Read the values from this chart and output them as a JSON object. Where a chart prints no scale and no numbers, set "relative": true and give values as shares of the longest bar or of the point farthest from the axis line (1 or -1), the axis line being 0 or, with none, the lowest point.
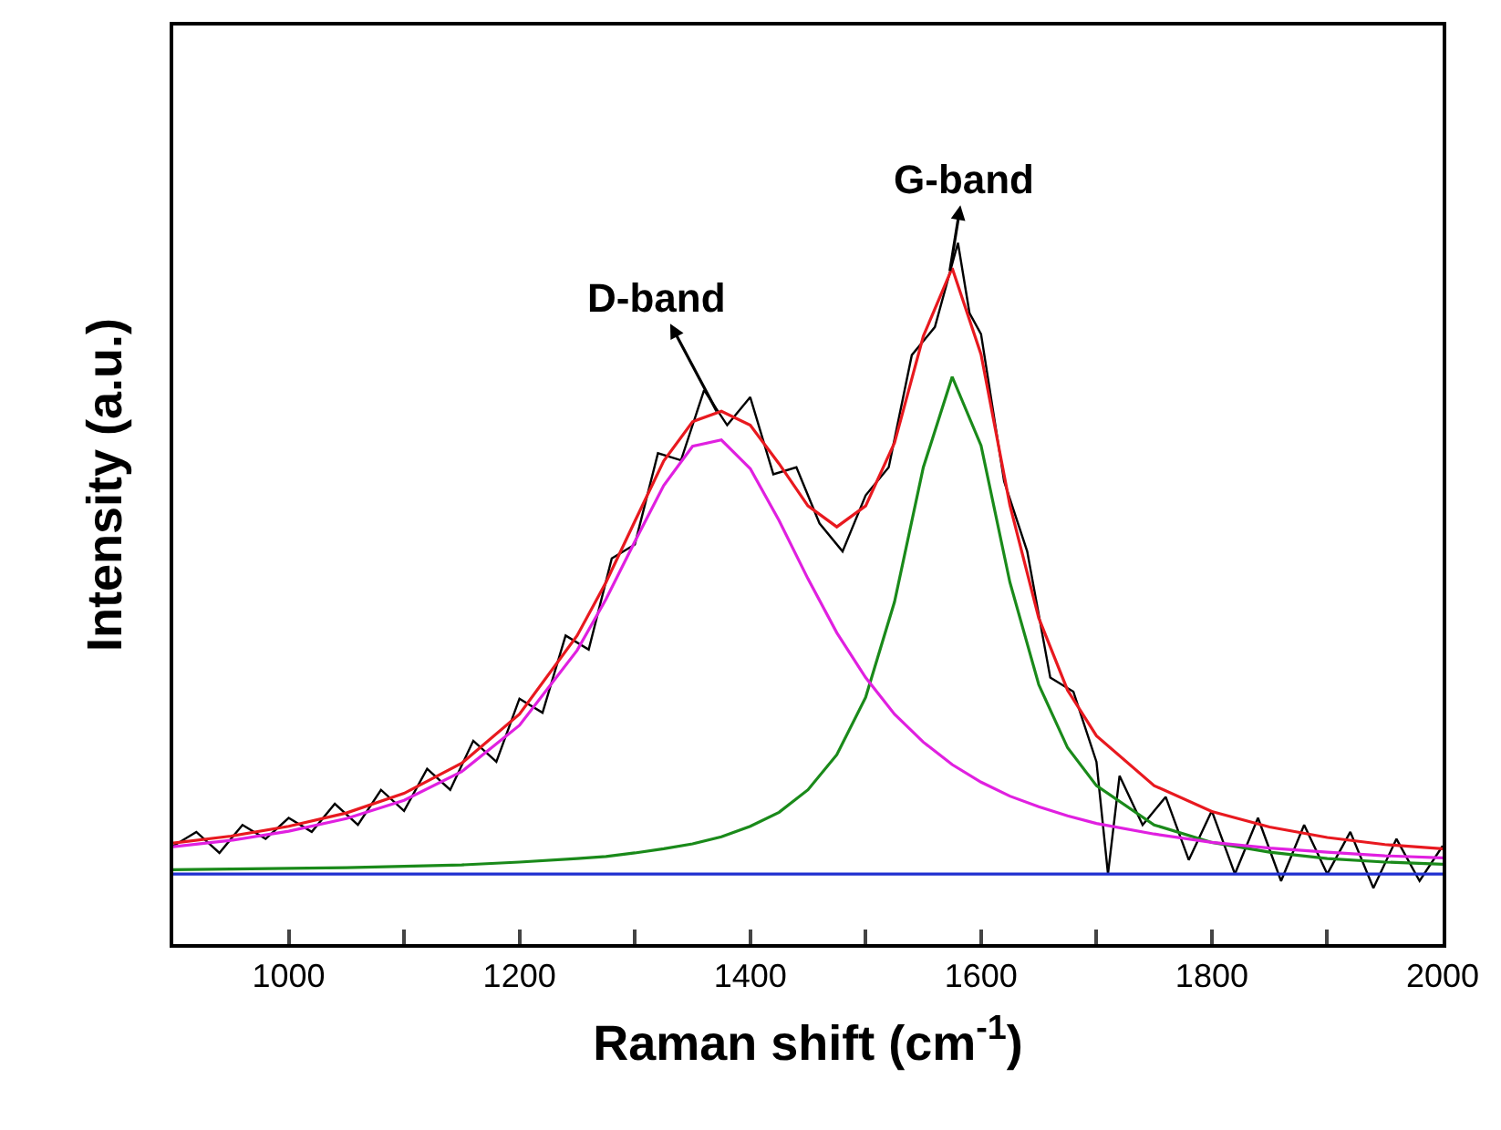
{
  "chart_data": {
    "type": "line",
    "relative": true,
    "xlabel": "Raman shift (cm$^{-1}$)",
    "ylabel": "Intensity (a.u.)",
    "xlim": [
      900,
      2000
    ],
    "xticks": [
      1000,
      {
        "value": 1100,
        "label": null
      },
      1200,
      {
        "value": 1300,
        "label": null
      },
      1400,
      {
        "value": 1500,
        "label": null
      },
      1600,
      {
        "value": 1700,
        "label": null
      },
      1800,
      {
        "value": 1900,
        "label": null
      },
      2000
    ],
    "marker": "none",
    "line_style": "solid",
    "tick_labels": "x",
    "annotations": [
      {
        "text": "D-band",
        "x": 1371,
        "y": 0.76
      },
      {
        "text": "G-band",
        "x": 1573,
        "y": 0.96
      }
    ],
    "series": [
      {
        "color": "#000000",
        "x": [
          900,
          920,
          940,
          960,
          980,
          1000,
          1020,
          1040,
          1060,
          1080,
          1100,
          1120,
          1140,
          1160,
          1180,
          1200,
          1220,
          1240,
          1260,
          1280,
          1300,
          1320,
          1340,
          1360,
          1380,
          1400,
          1420,
          1440,
          1460,
          1480,
          1500,
          1520,
          1540,
          1560,
          1580,
          1590,
          1600,
          1620,
          1640,
          1660,
          1680,
          1700,
          1710,
          1720,
          1740,
          1760,
          1780,
          1800,
          1820,
          1840,
          1860,
          1880,
          1900,
          1920,
          1940,
          1960,
          1980,
          2000
        ],
        "values": [
          0.14,
          0.16,
          0.13,
          0.17,
          0.15,
          0.18,
          0.16,
          0.2,
          0.17,
          0.22,
          0.19,
          0.25,
          0.22,
          0.29,
          0.26,
          0.35,
          0.33,
          0.44,
          0.42,
          0.55,
          0.57,
          0.7,
          0.69,
          0.79,
          0.74,
          0.78,
          0.67,
          0.68,
          0.6,
          0.56,
          0.64,
          0.68,
          0.84,
          0.88,
          1.0,
          0.9,
          0.87,
          0.66,
          0.56,
          0.38,
          0.36,
          0.26,
          0.1,
          0.24,
          0.17,
          0.21,
          0.12,
          0.19,
          0.1,
          0.18,
          0.09,
          0.17,
          0.1,
          0.16,
          0.08,
          0.15,
          0.09,
          0.14
        ]
      },
      {
        "color": "#1f2fd0",
        "x": [
          900,
          2000
        ],
        "values": [
          0.1,
          0.1
        ]
      },
      {
        "color": "#1a8a1a",
        "x": [
          900,
          950,
          1000,
          1050,
          1100,
          1150,
          1200,
          1250,
          1275,
          1300,
          1325,
          1350,
          1375,
          1400,
          1425,
          1450,
          1475,
          1500,
          1525,
          1550,
          1575,
          1600,
          1625,
          1650,
          1675,
          1700,
          1750,
          1800,
          1850,
          1900,
          1950,
          2000
        ],
        "values": [
          0.106,
          0.107,
          0.108,
          0.109,
          0.111,
          0.113,
          0.117,
          0.122,
          0.125,
          0.13,
          0.136,
          0.143,
          0.153,
          0.168,
          0.188,
          0.22,
          0.27,
          0.352,
          0.488,
          0.68,
          0.809,
          0.711,
          0.516,
          0.37,
          0.28,
          0.226,
          0.17,
          0.145,
          0.131,
          0.122,
          0.117,
          0.114
        ]
      },
      {
        "color": "#e020e0",
        "x": [
          900,
          950,
          1000,
          1050,
          1100,
          1150,
          1200,
          1250,
          1275,
          1300,
          1325,
          1350,
          1375,
          1400,
          1425,
          1450,
          1475,
          1500,
          1525,
          1550,
          1575,
          1600,
          1625,
          1650,
          1675,
          1700,
          1750,
          1800,
          1850,
          1900,
          1950,
          2000
        ],
        "values": [
          0.139,
          0.148,
          0.161,
          0.179,
          0.205,
          0.246,
          0.312,
          0.419,
          0.492,
          0.574,
          0.654,
          0.71,
          0.719,
          0.678,
          0.604,
          0.521,
          0.444,
          0.38,
          0.328,
          0.288,
          0.256,
          0.231,
          0.211,
          0.196,
          0.183,
          0.172,
          0.157,
          0.145,
          0.137,
          0.131,
          0.126,
          0.123
        ]
      },
      {
        "color": "#e8191f",
        "x": [
          900,
          950,
          1000,
          1050,
          1100,
          1150,
          1200,
          1250,
          1275,
          1300,
          1325,
          1350,
          1375,
          1400,
          1425,
          1450,
          1475,
          1500,
          1525,
          1550,
          1575,
          1600,
          1625,
          1650,
          1675,
          1700,
          1750,
          1800,
          1850,
          1900,
          1950,
          2000
        ],
        "values": [
          0.144,
          0.154,
          0.168,
          0.187,
          0.215,
          0.258,
          0.328,
          0.44,
          0.516,
          0.603,
          0.689,
          0.745,
          0.76,
          0.74,
          0.685,
          0.625,
          0.595,
          0.625,
          0.715,
          0.867,
          0.964,
          0.841,
          0.626,
          0.465,
          0.362,
          0.297,
          0.226,
          0.189,
          0.167,
          0.152,
          0.142,
          0.136
        ]
      }
    ]
  }
}
